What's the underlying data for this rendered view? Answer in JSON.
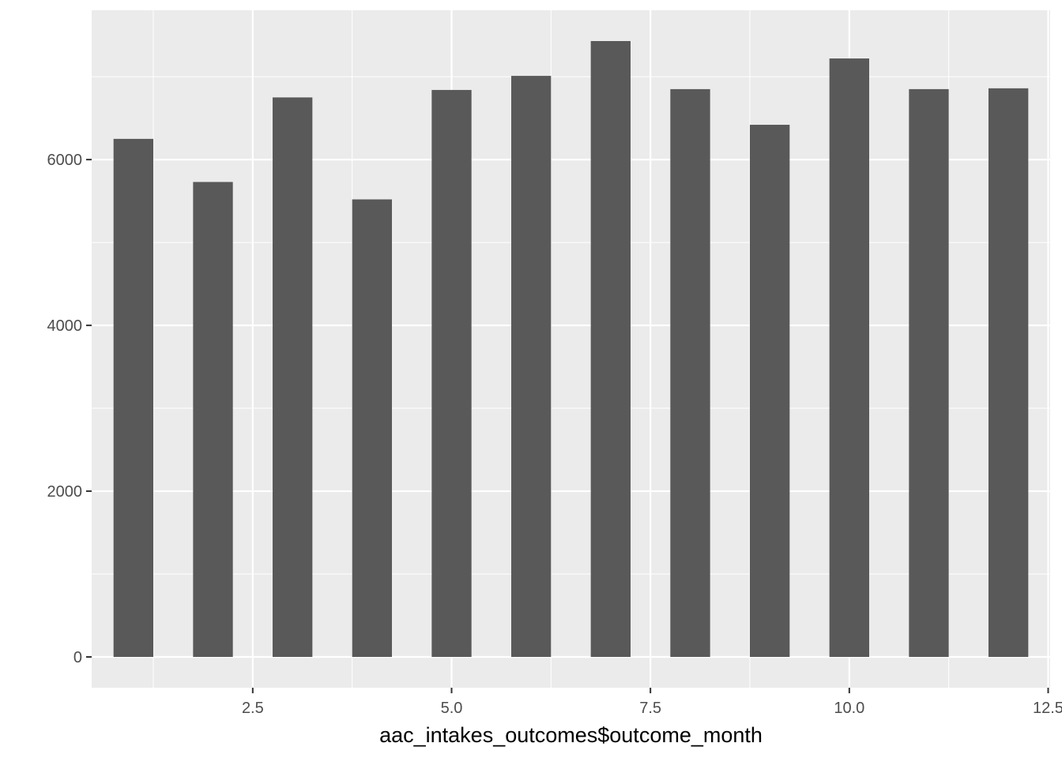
{
  "chart_data": {
    "type": "bar",
    "xlabel": "aac_intakes_outcomes$outcome_month",
    "ylabel": "",
    "x": [
      1,
      2,
      3,
      4,
      5,
      6,
      7,
      8,
      9,
      10,
      11,
      12
    ],
    "values": [
      6250,
      5730,
      6750,
      5520,
      6840,
      7010,
      7430,
      6850,
      6420,
      7220,
      6850,
      6860
    ],
    "bar_width": 0.5,
    "xlim": [
      0.475,
      12.525
    ],
    "ylim": [
      -371.5,
      7801.5
    ],
    "x_ticks": [
      2.5,
      5.0,
      7.5,
      10.0,
      12.5
    ],
    "x_tick_labels": [
      "2.5",
      "5.0",
      "7.5",
      "10.0",
      "12.5"
    ],
    "y_ticks": [
      0,
      2000,
      4000,
      6000
    ],
    "y_tick_labels": [
      "0",
      "2000",
      "4000",
      "6000"
    ],
    "grid": true,
    "legend": "none",
    "colors": {
      "panel_background": "#ebebeb",
      "grid_line": "#ffffff",
      "bar_fill": "#595959",
      "tick_text": "#4d4d4d",
      "tick_mark": "#333333"
    }
  }
}
